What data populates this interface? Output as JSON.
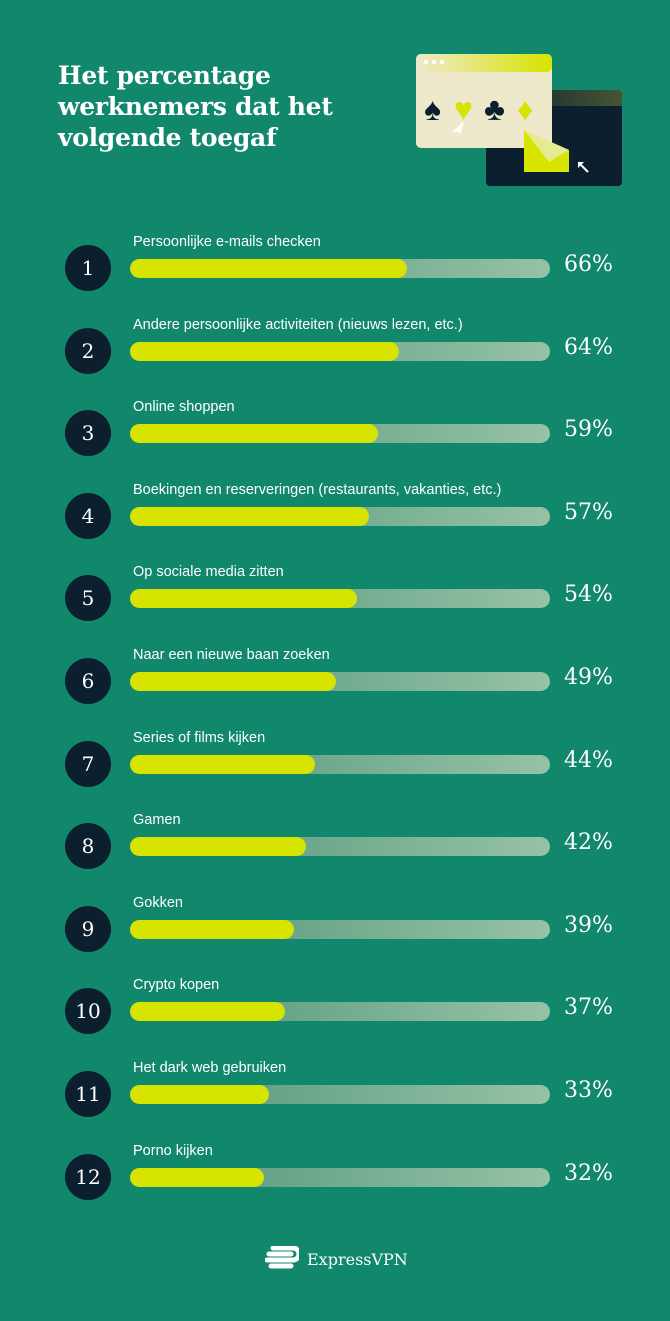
{
  "chart_data": {
    "type": "bar",
    "orientation": "horizontal",
    "title": "Het percentage werknemers dat het volgende toegaf",
    "xlim": [
      0,
      100
    ],
    "ranks": [
      "1",
      "2",
      "3",
      "4",
      "5",
      "6",
      "7",
      "8",
      "9",
      "10",
      "11",
      "12"
    ],
    "categories": [
      "Persoonlijke e-mails checken",
      "Andere persoonlijke activiteiten (nieuws lezen, etc.)",
      "Online shoppen",
      "Boekingen en reserveringen (restaurants, vakanties, etc.)",
      "Op sociale media zitten",
      "Naar een nieuwe baan zoeken",
      "Series of films kijken",
      "Gamen",
      "Gokken",
      "Crypto kopen",
      "Het dark web gebruiken",
      "Porno kijken"
    ],
    "values": [
      66,
      64,
      59,
      57,
      54,
      49,
      44,
      42,
      39,
      37,
      33,
      32
    ],
    "value_labels": [
      "66%",
      "64%",
      "59%",
      "57%",
      "54%",
      "49%",
      "44%",
      "42%",
      "39%",
      "37%",
      "33%",
      "32%"
    ],
    "colors": {
      "background": "#11876b",
      "fill": "#d6e400",
      "track": "#96c2a6",
      "rank_circle": "#0b1f2e"
    }
  },
  "header": {
    "illustration": "browser-windows-card-suits-envelope-icon"
  },
  "footer": {
    "brand": "ExpressVPN",
    "logo_icon": "expressvpn-logo-icon"
  }
}
